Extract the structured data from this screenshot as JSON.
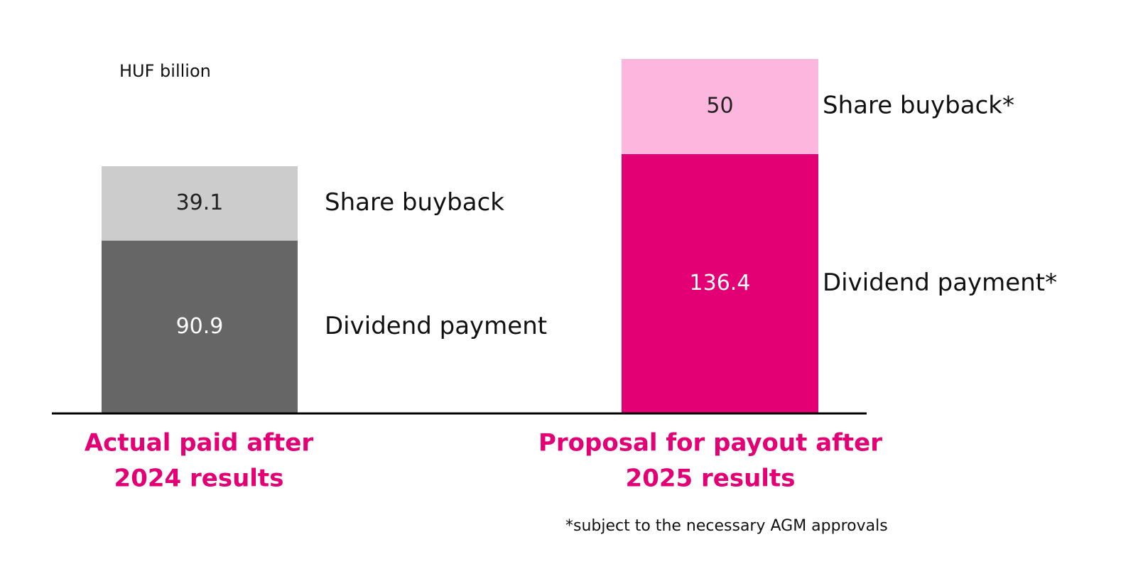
{
  "chart_data": {
    "type": "stacked-bar",
    "unit_label": "HUF billion",
    "footnote": "*subject to the necessary AGM approvals",
    "categories": [
      [
        "Actual paid after",
        "2024 results"
      ],
      [
        "Proposal for payout after",
        "2025 results"
      ]
    ],
    "category_color": "#e20074",
    "stacks": [
      {
        "segments": [
          {
            "name": "Dividend payment",
            "color": "#666666",
            "value": 90.9
          },
          {
            "name": "Share buyback",
            "color": "#cccccc",
            "value": 39.1
          }
        ]
      },
      {
        "segments": [
          {
            "name": "Dividend payment*",
            "color": "#e20074",
            "value": 136.4
          },
          {
            "name": "Share buyback*",
            "color": "#fdb7de",
            "value": 50.0
          }
        ]
      }
    ]
  }
}
